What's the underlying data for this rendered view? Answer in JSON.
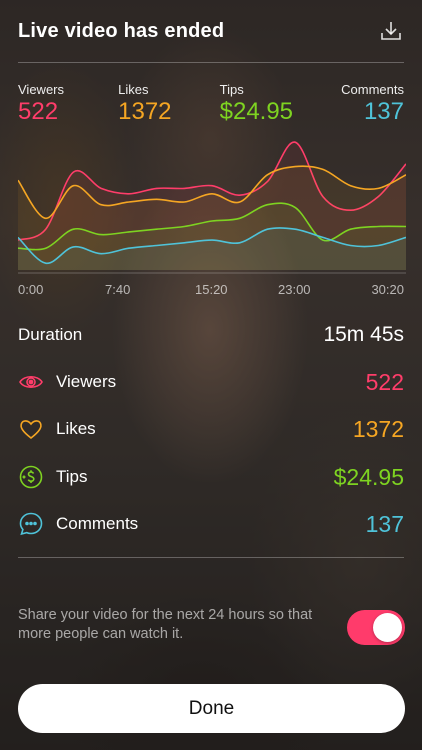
{
  "header": {
    "title": "Live video has ended",
    "download_icon": "download-icon"
  },
  "stats": [
    {
      "label": "Viewers",
      "value": "522",
      "color": "#ff3d6a"
    },
    {
      "label": "Likes",
      "value": "1372",
      "color": "#f5a623"
    },
    {
      "label": "Tips",
      "value": "$24.95",
      "color": "#7ed321"
    },
    {
      "label": "Comments",
      "value": "137",
      "color": "#4fc3d9"
    }
  ],
  "chart_data": {
    "type": "line",
    "x_ticks": [
      "0:00",
      "7:40",
      "15:20",
      "23:00",
      "30:20"
    ],
    "series": [
      {
        "name": "Viewers",
        "color": "#ff3d6a",
        "values": [
          0.22,
          0.3,
          0.72,
          0.6,
          0.56,
          0.6,
          0.6,
          0.62,
          0.55,
          0.65,
          0.94,
          0.54,
          0.44,
          0.54,
          0.78
        ]
      },
      {
        "name": "Likes",
        "color": "#f5a623",
        "values": [
          0.66,
          0.38,
          0.62,
          0.48,
          0.5,
          0.52,
          0.5,
          0.56,
          0.5,
          0.7,
          0.76,
          0.74,
          0.62,
          0.6,
          0.7
        ]
      },
      {
        "name": "Tips",
        "color": "#7ed321",
        "values": [
          0.16,
          0.16,
          0.3,
          0.26,
          0.28,
          0.3,
          0.32,
          0.36,
          0.38,
          0.48,
          0.46,
          0.22,
          0.3,
          0.32,
          0.32
        ]
      },
      {
        "name": "Comments",
        "color": "#4fc3d9",
        "values": [
          0.24,
          0.05,
          0.17,
          0.12,
          0.16,
          0.18,
          0.2,
          0.22,
          0.2,
          0.3,
          0.3,
          0.24,
          0.18,
          0.18,
          0.24
        ]
      }
    ]
  },
  "duration": {
    "label": "Duration",
    "value": "15m 45s"
  },
  "metrics": [
    {
      "label": "Viewers",
      "value": "522",
      "icon": "eye-icon",
      "color": "#ff3d6a"
    },
    {
      "label": "Likes",
      "value": "1372",
      "icon": "heart-icon",
      "color": "#f5a623"
    },
    {
      "label": "Tips",
      "value": "$24.95",
      "icon": "tips-icon",
      "color": "#7ed321"
    },
    {
      "label": "Comments",
      "value": "137",
      "icon": "comment-icon",
      "color": "#4fc3d9"
    }
  ],
  "share": {
    "text": "Share your video for the next 24 hours so that more people can watch it.",
    "enabled": true,
    "toggle_color": "#ff3b6b"
  },
  "done_button": {
    "label": "Done"
  }
}
